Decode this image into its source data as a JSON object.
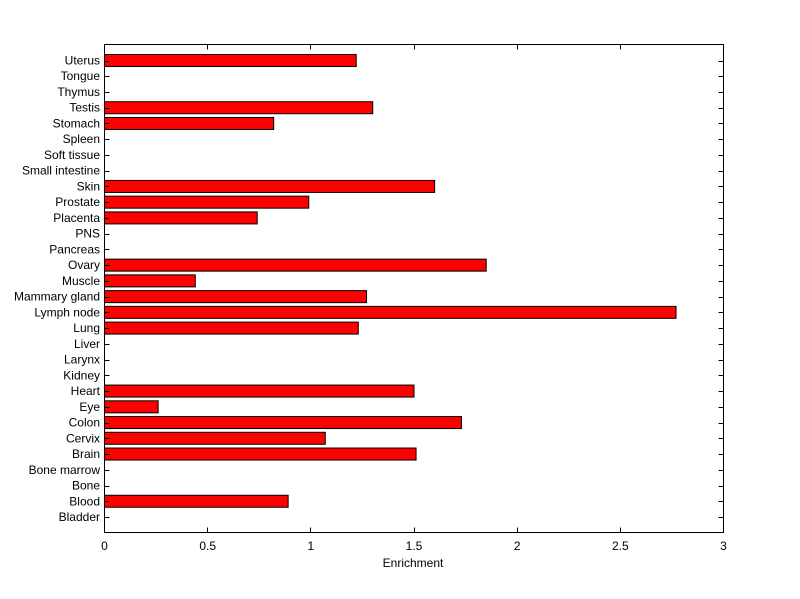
{
  "chart_data": {
    "type": "bar",
    "orientation": "horizontal",
    "title": "",
    "xlabel": "Enrichment",
    "ylabel": "",
    "xlim": [
      0,
      3
    ],
    "xticks": [
      0,
      0.5,
      1,
      1.5,
      2,
      2.5,
      3
    ],
    "xtick_labels": [
      "0",
      "0.5",
      "1",
      "1.5",
      "2",
      "2.5",
      "3"
    ],
    "grid": false,
    "bar_color": "#ff0000",
    "edge_color": "#000000",
    "categories": [
      "Bladder",
      "Blood",
      "Bone",
      "Bone marrow",
      "Brain",
      "Cervix",
      "Colon",
      "Eye",
      "Heart",
      "Kidney",
      "Larynx",
      "Liver",
      "Lung",
      "Lymph node",
      "Mammary gland",
      "Muscle",
      "Ovary",
      "Pancreas",
      "PNS",
      "Placenta",
      "Prostate",
      "Skin",
      "Small intestine",
      "Soft tissue",
      "Spleen",
      "Stomach",
      "Testis",
      "Thymus",
      "Tongue",
      "Uterus"
    ],
    "values": [
      0,
      0.89,
      0,
      0,
      1.51,
      1.07,
      1.73,
      0.26,
      1.5,
      0,
      0,
      0,
      1.23,
      2.77,
      1.27,
      0.44,
      1.85,
      0,
      0,
      0.74,
      0.99,
      1.6,
      0,
      0,
      0,
      0.82,
      1.3,
      0,
      0,
      1.22
    ]
  }
}
